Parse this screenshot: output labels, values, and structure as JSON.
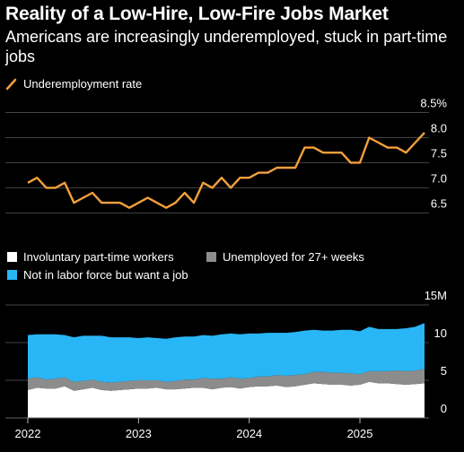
{
  "header": {
    "title": "Reality of a Low-Hire, Low-Fire Jobs Market",
    "subtitle": "Americans are increasingly underemployed, stuck in part-time jobs"
  },
  "chart_data": [
    {
      "type": "line",
      "legend": [
        {
          "label": "Underemployment rate",
          "color": "#f5a03c"
        }
      ],
      "series": [
        {
          "name": "Underemployment rate",
          "color": "#f5a03c",
          "x": [
            "2022-01",
            "2022-02",
            "2022-03",
            "2022-04",
            "2022-05",
            "2022-06",
            "2022-07",
            "2022-08",
            "2022-09",
            "2022-10",
            "2022-11",
            "2022-12",
            "2023-01",
            "2023-02",
            "2023-03",
            "2023-04",
            "2023-05",
            "2023-06",
            "2023-07",
            "2023-08",
            "2023-09",
            "2023-10",
            "2023-11",
            "2023-12",
            "2024-01",
            "2024-02",
            "2024-03",
            "2024-04",
            "2024-05",
            "2024-06",
            "2024-07",
            "2024-08",
            "2024-09",
            "2024-10",
            "2024-11",
            "2024-12",
            "2025-01",
            "2025-02",
            "2025-03",
            "2025-04",
            "2025-05",
            "2025-06",
            "2025-07",
            "2025-08"
          ],
          "values": [
            7.1,
            7.2,
            7.0,
            7.0,
            7.1,
            6.7,
            6.8,
            6.9,
            6.7,
            6.7,
            6.7,
            6.6,
            6.7,
            6.8,
            6.7,
            6.6,
            6.7,
            6.9,
            6.7,
            7.1,
            7.0,
            7.2,
            7.0,
            7.2,
            7.2,
            7.3,
            7.3,
            7.4,
            7.4,
            7.4,
            7.8,
            7.8,
            7.7,
            7.7,
            7.7,
            7.5,
            7.5,
            8.0,
            7.9,
            7.8,
            7.8,
            7.7,
            7.9,
            8.1
          ]
        }
      ],
      "ylim": [
        6.3,
        8.5
      ],
      "yticks": [
        {
          "value": 6.5,
          "label": "6.5"
        },
        {
          "value": 7.0,
          "label": "7.0"
        },
        {
          "value": 7.5,
          "label": "7.5"
        },
        {
          "value": 8.0,
          "label": "8.0"
        },
        {
          "value": 8.5,
          "label": "8.5%"
        }
      ],
      "grid": true
    },
    {
      "type": "area",
      "stacked": true,
      "legend": [
        {
          "label": "Involuntary part-time workers",
          "color": "#ffffff"
        },
        {
          "label": "Unemployed for 27+ weeks",
          "color": "#8c8c8c"
        },
        {
          "label": "Not in labor force but want a job",
          "color": "#29b6f6"
        }
      ],
      "x": [
        "2022-01",
        "2022-02",
        "2022-03",
        "2022-04",
        "2022-05",
        "2022-06",
        "2022-07",
        "2022-08",
        "2022-09",
        "2022-10",
        "2022-11",
        "2022-12",
        "2023-01",
        "2023-02",
        "2023-03",
        "2023-04",
        "2023-05",
        "2023-06",
        "2023-07",
        "2023-08",
        "2023-09",
        "2023-10",
        "2023-11",
        "2023-12",
        "2024-01",
        "2024-02",
        "2024-03",
        "2024-04",
        "2024-05",
        "2024-06",
        "2024-07",
        "2024-08",
        "2024-09",
        "2024-10",
        "2024-11",
        "2024-12",
        "2025-01",
        "2025-02",
        "2025-03",
        "2025-04",
        "2025-05",
        "2025-06",
        "2025-07",
        "2025-08"
      ],
      "series": [
        {
          "name": "Involuntary part-time workers",
          "color": "#ffffff",
          "values": [
            3.7,
            4.0,
            3.9,
            3.9,
            4.2,
            3.6,
            3.8,
            4.0,
            3.7,
            3.6,
            3.7,
            3.8,
            3.9,
            3.9,
            4.0,
            3.8,
            3.8,
            3.9,
            4.0,
            4.0,
            3.8,
            4.0,
            4.1,
            3.9,
            4.1,
            4.2,
            4.2,
            4.3,
            4.1,
            4.2,
            4.4,
            4.6,
            4.5,
            4.4,
            4.4,
            4.3,
            4.4,
            4.8,
            4.6,
            4.6,
            4.5,
            4.4,
            4.5,
            4.6
          ]
        },
        {
          "name": "Unemployed for 27+ weeks",
          "color": "#8c8c8c",
          "values": [
            1.5,
            1.4,
            1.2,
            1.3,
            1.2,
            1.2,
            1.1,
            1.1,
            1.1,
            1.1,
            1.1,
            1.1,
            1.1,
            1.1,
            1.0,
            1.0,
            1.1,
            1.2,
            1.1,
            1.3,
            1.4,
            1.2,
            1.3,
            1.3,
            1.2,
            1.3,
            1.3,
            1.4,
            1.5,
            1.5,
            1.4,
            1.5,
            1.6,
            1.6,
            1.6,
            1.6,
            1.4,
            1.4,
            1.6,
            1.6,
            1.8,
            1.8,
            1.8,
            1.9
          ]
        },
        {
          "name": "Not in labor force but want a job",
          "color": "#29b6f6",
          "values": [
            5.8,
            5.7,
            6.0,
            5.9,
            5.6,
            5.9,
            6.0,
            5.8,
            6.1,
            6.0,
            5.9,
            5.8,
            5.6,
            5.7,
            5.6,
            5.7,
            5.8,
            5.7,
            5.7,
            5.7,
            5.7,
            5.9,
            5.8,
            5.9,
            5.9,
            5.7,
            5.8,
            5.6,
            5.7,
            5.7,
            5.8,
            5.6,
            5.5,
            5.6,
            5.7,
            5.8,
            5.7,
            5.9,
            5.6,
            5.6,
            5.5,
            5.7,
            5.8,
            6.1
          ]
        }
      ],
      "ylim": [
        0,
        15
      ],
      "yticks": [
        {
          "value": 0,
          "label": "0"
        },
        {
          "value": 5,
          "label": "5"
        },
        {
          "value": 10,
          "label": "10"
        },
        {
          "value": 15,
          "label": "15M"
        }
      ],
      "xticks": [
        {
          "value": "2022-01",
          "label": "2022"
        },
        {
          "value": "2023-01",
          "label": "2023"
        },
        {
          "value": "2024-01",
          "label": "2024"
        },
        {
          "value": "2025-01",
          "label": "2025"
        }
      ],
      "grid": true
    }
  ]
}
